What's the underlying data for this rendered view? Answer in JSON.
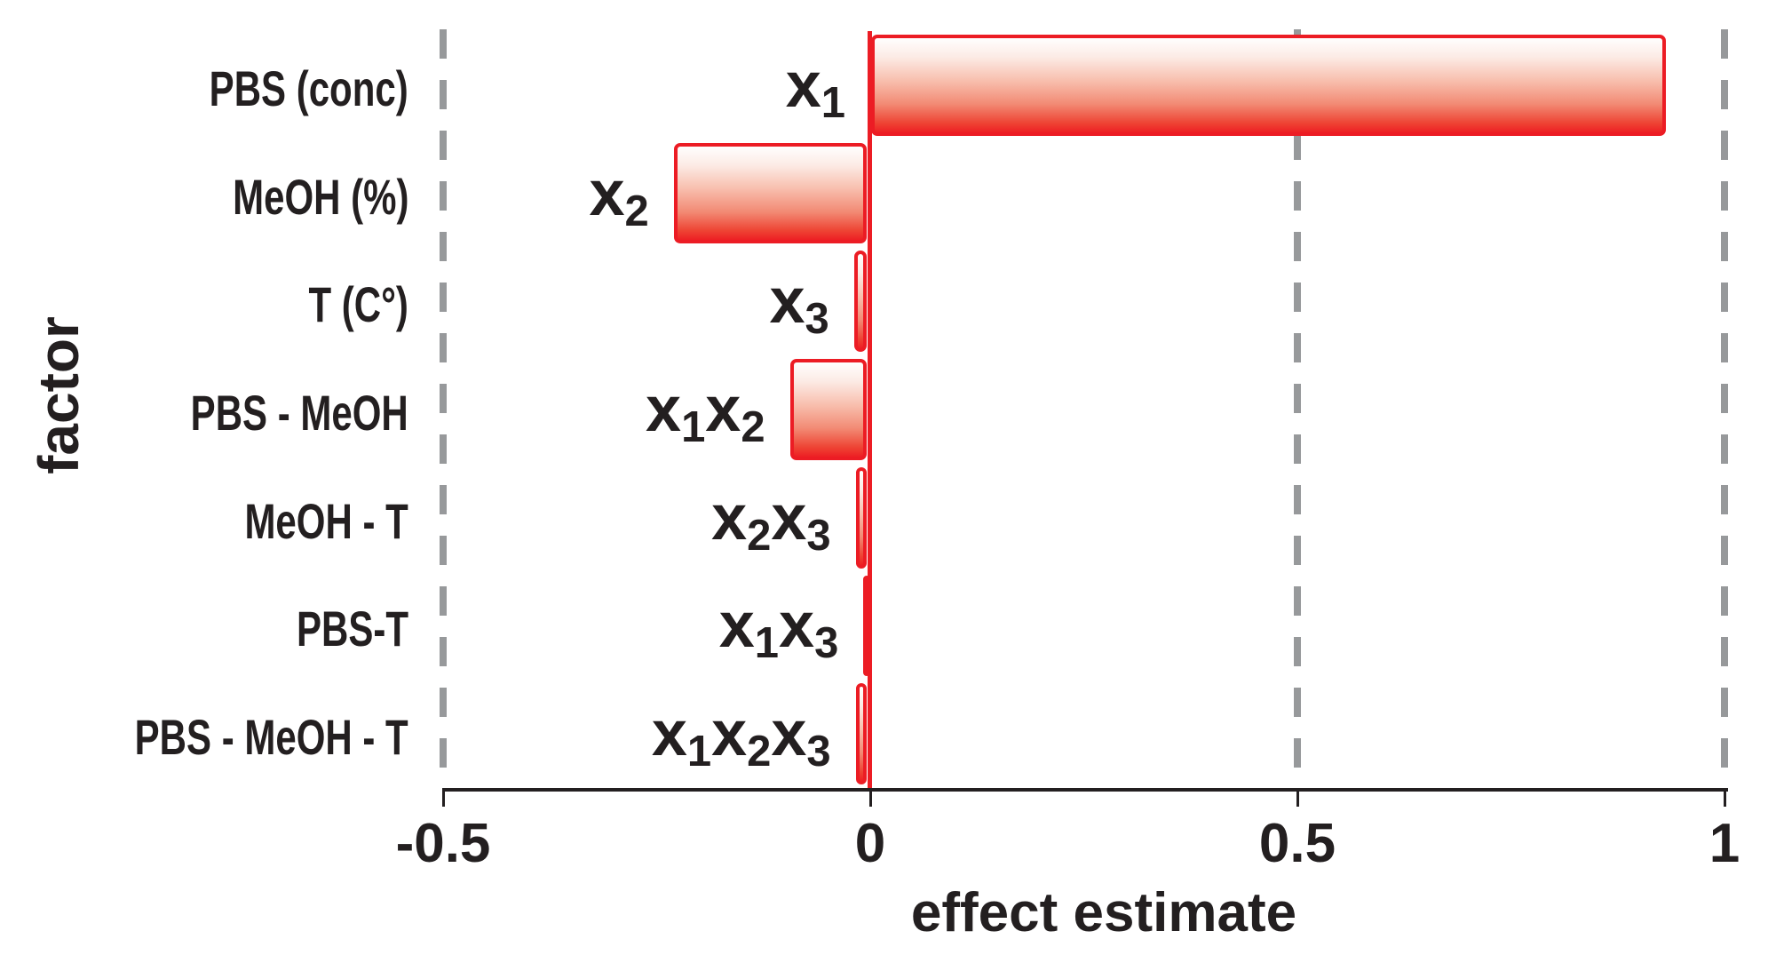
{
  "chart_data": {
    "type": "bar",
    "orientation": "horizontal",
    "title": "",
    "xlabel": "effect estimate",
    "ylabel": "factor",
    "xlim": [
      -0.5,
      1
    ],
    "xticks": [
      -0.5,
      0,
      0.5,
      1
    ],
    "xtick_labels": [
      "-0.5",
      "0",
      "0.5",
      "1"
    ],
    "gridlines_at": [
      -0.5,
      0.5,
      1
    ],
    "grid_style": "vertical gray dashed lines at -0.5, 0.5 and 1; solid red vertical line at 0",
    "legend": "none",
    "categories": [
      "PBS (conc)",
      "MeOH (%)",
      "T (C°)",
      "PBS - MeOH",
      "MeOH - T",
      "PBS-T",
      "PBS - MeOH - T"
    ],
    "bar_labels": [
      "x1",
      "x2",
      "x3",
      "x1x2",
      "x2x3",
      "x1x3",
      "x1x2x3"
    ],
    "values": [
      0.93,
      -0.23,
      -0.019,
      -0.094,
      -0.017,
      -0.008,
      -0.017
    ]
  },
  "rows": [
    {
      "category": "PBS (conc)",
      "bar_label_subs": [
        "1"
      ],
      "value": 0.93
    },
    {
      "category": "MeOH (%)",
      "bar_label_subs": [
        "2"
      ],
      "value": -0.23
    },
    {
      "category": "T (C°)",
      "bar_label_subs": [
        "3"
      ],
      "value": -0.019
    },
    {
      "category": "PBS - MeOH",
      "bar_label_subs": [
        "1",
        "2"
      ],
      "value": -0.094
    },
    {
      "category": "MeOH - T",
      "bar_label_subs": [
        "2",
        "3"
      ],
      "value": -0.017
    },
    {
      "category": "PBS-T",
      "bar_label_subs": [
        "1",
        "3"
      ],
      "value": -0.008
    },
    {
      "category": "PBS - MeOH - T",
      "bar_label_subs": [
        "1",
        "2",
        "3"
      ],
      "value": -0.017
    }
  ],
  "axis": {
    "x_title": "effect estimate",
    "y_title": "factor"
  },
  "colors": {
    "bar_border_red": "#ec1c24",
    "bar_fill_top": "#fffefe",
    "bar_fill_bottom": "#ed2024",
    "gridline_gray": "#97999b",
    "text_and_axis": "#231f20",
    "background": "#ffffff"
  }
}
